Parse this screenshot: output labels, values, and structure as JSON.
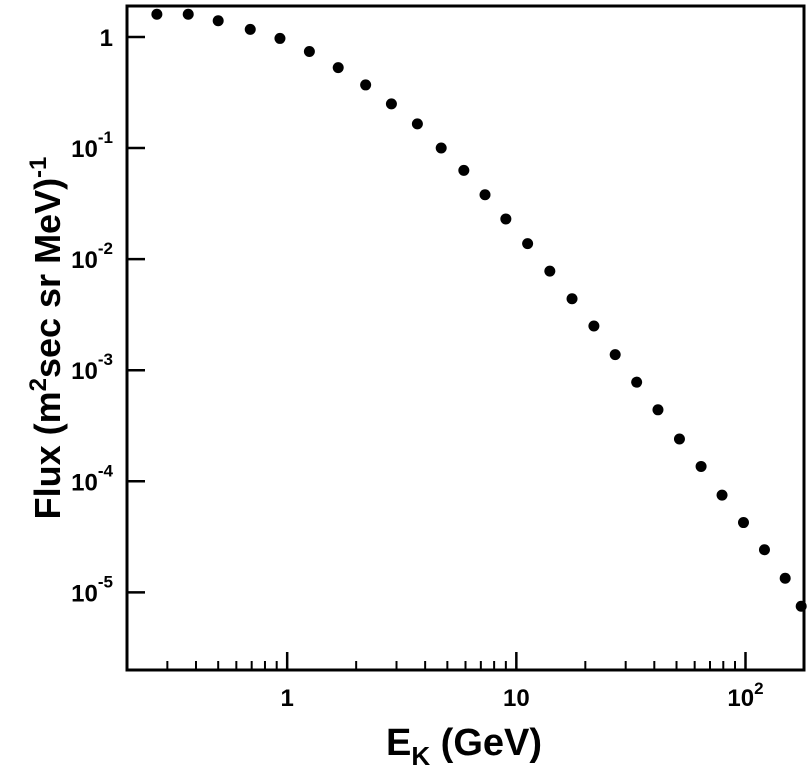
{
  "chart_data": {
    "type": "scatter",
    "title": "",
    "xlabel": {
      "main": "E",
      "sub": "K",
      "rest": " (GeV)"
    },
    "ylabel": {
      "main": "Flux (m",
      "sup1": "2",
      "mid": "sec sr MeV)",
      "sup2": "-1"
    },
    "x_scale": "log",
    "y_scale": "log",
    "xlim": [
      0.2,
      180
    ],
    "ylim": [
      2e-06,
      1.9
    ],
    "grid": false,
    "legend": "none",
    "x_ticks": [
      {
        "value": 1,
        "base": "1",
        "exp": ""
      },
      {
        "value": 10,
        "base": "10",
        "exp": ""
      },
      {
        "value": 100,
        "base": "10",
        "exp": "2"
      }
    ],
    "y_ticks": [
      {
        "value": 1,
        "base": "1",
        "exp": ""
      },
      {
        "value": 0.1,
        "base": "10",
        "exp": "-1"
      },
      {
        "value": 0.01,
        "base": "10",
        "exp": "-2"
      },
      {
        "value": 0.001,
        "base": "10",
        "exp": "-3"
      },
      {
        "value": 0.0001,
        "base": "10",
        "exp": "-4"
      },
      {
        "value": 1e-05,
        "base": "10",
        "exp": "-5"
      }
    ],
    "series": [
      {
        "name": "",
        "color": "#000000",
        "marker": "filled-circle",
        "x": [
          0.27,
          0.37,
          0.5,
          0.69,
          0.93,
          1.25,
          1.67,
          2.2,
          2.85,
          3.7,
          4.7,
          5.9,
          7.3,
          9.0,
          11.2,
          14.0,
          17.5,
          21.8,
          27.0,
          33.5,
          41.5,
          51.5,
          64.0,
          79.0,
          98.0,
          121.0,
          149.0,
          175.0
        ],
        "y": [
          1.6,
          1.6,
          1.4,
          1.17,
          0.97,
          0.74,
          0.53,
          0.37,
          0.25,
          0.165,
          0.1,
          0.063,
          0.038,
          0.023,
          0.0138,
          0.0078,
          0.0044,
          0.0025,
          0.00138,
          0.00078,
          0.00044,
          0.00024,
          0.000136,
          7.5e-05,
          4.25e-05,
          2.42e-05,
          1.34e-05,
          7.5e-06
        ]
      }
    ]
  }
}
